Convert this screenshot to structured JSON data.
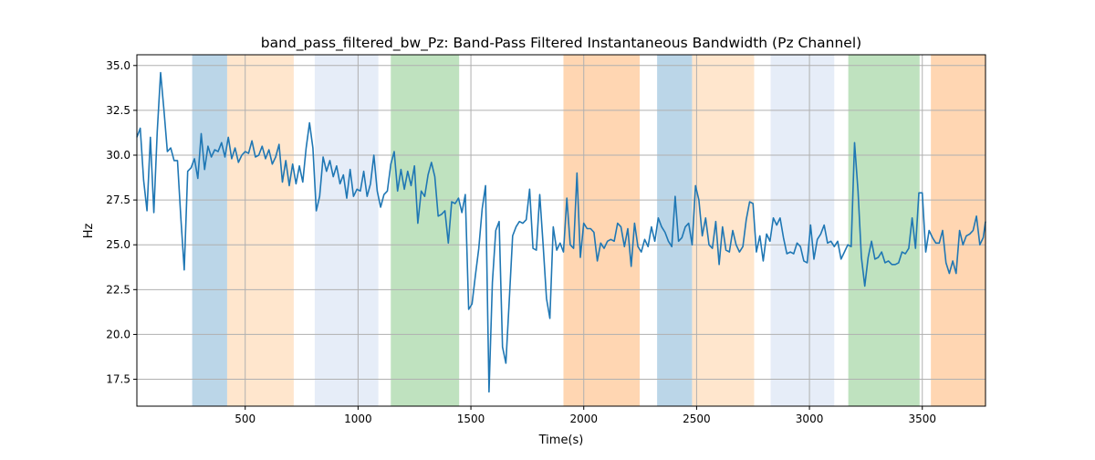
{
  "chart_data": {
    "type": "line",
    "title": "band_pass_filtered_bw_Pz: Band-Pass Filtered Instantaneous Bandwidth (Pz Channel)",
    "xlabel": "Time(s)",
    "ylabel": "Hz",
    "xlim": [
      20,
      3780
    ],
    "ylim": [
      16,
      35.6
    ],
    "xticks": [
      500,
      1000,
      1500,
      2000,
      2500,
      3000,
      3500
    ],
    "yticks": [
      17.5,
      20.0,
      22.5,
      25.0,
      27.5,
      30.0,
      32.5,
      35.0
    ],
    "grid": true,
    "colors": {
      "line": "#1f77b4",
      "blue": "#1f77b4",
      "orange": "#ff7f0e",
      "green": "#2ca02c",
      "light_orange": "#ffdcb8",
      "light_blue": "#dbe5f5"
    },
    "bands": [
      {
        "start": 265,
        "end": 420,
        "color": "#1f77b4",
        "opacity": 0.3
      },
      {
        "start": 420,
        "end": 715,
        "color": "#ffdcb8",
        "opacity": 0.7
      },
      {
        "start": 808,
        "end": 1090,
        "color": "#dbe5f5",
        "opacity": 0.7
      },
      {
        "start": 1145,
        "end": 1448,
        "color": "#2ca02c",
        "opacity": 0.3
      },
      {
        "start": 1910,
        "end": 2248,
        "color": "#ff7f0e",
        "opacity": 0.32
      },
      {
        "start": 2325,
        "end": 2480,
        "color": "#1f77b4",
        "opacity": 0.3
      },
      {
        "start": 2480,
        "end": 2755,
        "color": "#ffdcb8",
        "opacity": 0.7
      },
      {
        "start": 2828,
        "end": 3110,
        "color": "#dbe5f5",
        "opacity": 0.7
      },
      {
        "start": 3172,
        "end": 3488,
        "color": "#2ca02c",
        "opacity": 0.3
      },
      {
        "start": 3538,
        "end": 3780,
        "color": "#ff7f0e",
        "opacity": 0.32
      }
    ],
    "series": [
      {
        "x": [
          20,
          35,
          50,
          65,
          80,
          95,
          110,
          125,
          140,
          155,
          170,
          185,
          200,
          215,
          230,
          245,
          260,
          275,
          290,
          305,
          320,
          335,
          350,
          365,
          380,
          395,
          410,
          425,
          440,
          455,
          470,
          485,
          500,
          515,
          530,
          545,
          560,
          575,
          590,
          605,
          620,
          635,
          650,
          665,
          680,
          695,
          710,
          725,
          740,
          755,
          770,
          785,
          800,
          815,
          830,
          845,
          860,
          875,
          890,
          905,
          920,
          935,
          950,
          965,
          980,
          995,
          1010,
          1025,
          1040,
          1055,
          1070,
          1085,
          1100,
          1115,
          1130,
          1145,
          1160,
          1175,
          1190,
          1205,
          1220,
          1235,
          1250,
          1265,
          1280,
          1295,
          1310,
          1325,
          1340,
          1355,
          1370,
          1385,
          1400,
          1415,
          1430,
          1445,
          1460,
          1475,
          1490,
          1505,
          1520,
          1535,
          1550,
          1565,
          1580,
          1595,
          1610,
          1625,
          1640,
          1655,
          1670,
          1685,
          1700,
          1715,
          1730,
          1745,
          1760,
          1775,
          1790,
          1805,
          1820,
          1835,
          1850,
          1865,
          1880,
          1895,
          1910,
          1925,
          1940,
          1955,
          1970,
          1985,
          2000,
          2015,
          2030,
          2045,
          2060,
          2075,
          2090,
          2105,
          2120,
          2135,
          2150,
          2165,
          2180,
          2195,
          2210,
          2225,
          2240,
          2255,
          2270,
          2285,
          2300,
          2315,
          2330,
          2345,
          2360,
          2375,
          2390,
          2405,
          2420,
          2435,
          2450,
          2465,
          2480,
          2495,
          2510,
          2525,
          2540,
          2555,
          2570,
          2585,
          2600,
          2615,
          2630,
          2645,
          2660,
          2675,
          2690,
          2705,
          2720,
          2735,
          2750,
          2765,
          2780,
          2795,
          2810,
          2825,
          2840,
          2855,
          2870,
          2885,
          2900,
          2915,
          2930,
          2945,
          2960,
          2975,
          2990,
          3005,
          3020,
          3035,
          3050,
          3065,
          3080,
          3095,
          3110,
          3125,
          3140,
          3155,
          3170,
          3185,
          3200,
          3215,
          3230,
          3245,
          3260,
          3275,
          3290,
          3305,
          3320,
          3335,
          3350,
          3365,
          3380,
          3395,
          3410,
          3425,
          3440,
          3455,
          3470,
          3485,
          3500,
          3515,
          3530,
          3545,
          3560,
          3575,
          3590,
          3605,
          3620,
          3635,
          3650,
          3665,
          3680,
          3695,
          3710,
          3725,
          3740,
          3755,
          3770,
          3780
        ],
        "y": [
          31.0,
          31.5,
          28.6,
          26.9,
          31.0,
          26.8,
          31.3,
          34.6,
          32.5,
          30.2,
          30.4,
          29.7,
          29.7,
          26.5,
          23.6,
          29.1,
          29.3,
          29.8,
          28.7,
          31.2,
          29.2,
          30.5,
          29.9,
          30.3,
          30.2,
          30.7,
          29.9,
          31.0,
          29.8,
          30.4,
          29.6,
          30.0,
          30.2,
          30.1,
          30.8,
          29.9,
          30.0,
          30.5,
          29.8,
          30.3,
          29.5,
          29.9,
          30.6,
          28.5,
          29.7,
          28.3,
          29.5,
          28.4,
          29.4,
          28.5,
          30.4,
          31.8,
          30.4,
          26.9,
          27.7,
          29.9,
          29.1,
          29.7,
          28.8,
          29.4,
          28.4,
          28.9,
          27.6,
          29.2,
          27.7,
          28.1,
          28.0,
          29.1,
          27.7,
          28.4,
          30.0,
          28.0,
          27.1,
          27.8,
          28.0,
          29.5,
          30.2,
          28.0,
          29.2,
          28.1,
          29.1,
          28.3,
          29.4,
          26.2,
          28.0,
          27.7,
          28.9,
          29.6,
          28.8,
          26.6,
          26.7,
          26.9,
          25.1,
          27.4,
          27.3,
          27.6,
          26.8,
          27.8,
          21.4,
          21.7,
          23.3,
          24.8,
          27.0,
          28.3,
          16.8,
          22.9,
          25.8,
          26.3,
          19.3,
          18.4,
          21.9,
          25.5,
          26.0,
          26.3,
          26.2,
          26.4,
          28.1,
          24.8,
          24.7,
          27.8,
          25.0,
          22.0,
          20.9,
          26.0,
          24.7,
          25.1,
          24.6,
          27.6,
          25.0,
          24.8,
          29.0,
          24.3,
          26.2,
          25.9,
          25.9,
          25.7,
          24.1,
          25.1,
          24.8,
          25.2,
          25.3,
          25.2,
          26.2,
          26.0,
          24.9,
          25.9,
          23.8,
          26.2,
          24.9,
          24.6,
          25.3,
          24.9,
          26.0,
          25.2,
          26.5,
          26.0,
          25.7,
          25.2,
          24.9,
          27.7,
          25.2,
          25.4,
          26.0,
          26.2,
          25.0,
          28.3,
          27.5,
          25.5,
          26.5,
          25.0,
          24.8,
          26.3,
          23.9,
          26.0,
          24.7,
          24.6,
          25.8,
          25.0,
          24.6,
          24.9,
          26.4,
          27.4,
          27.3,
          24.6,
          25.5,
          24.1,
          25.6,
          25.2,
          26.5,
          26.1,
          26.5,
          25.4,
          24.5,
          24.6,
          24.5,
          25.1,
          24.9,
          24.1,
          24.0,
          26.1,
          24.2,
          25.3,
          25.6,
          26.1,
          25.1,
          25.2,
          24.9,
          25.2,
          24.2,
          24.6,
          25.0,
          24.9,
          30.7,
          28.0,
          24.3,
          22.7,
          24.3,
          25.2,
          24.2,
          24.3,
          24.6,
          24.0,
          24.1,
          23.9,
          23.9,
          24.0,
          24.6,
          24.5,
          24.8,
          26.5,
          24.8,
          27.9,
          27.9,
          24.6,
          25.8,
          25.4,
          25.1,
          25.1,
          25.8,
          24.0,
          23.4,
          24.1,
          23.4,
          25.8,
          25.0,
          25.5,
          25.6,
          25.8,
          26.6,
          25.0,
          25.4,
          26.3
        ]
      }
    ]
  }
}
